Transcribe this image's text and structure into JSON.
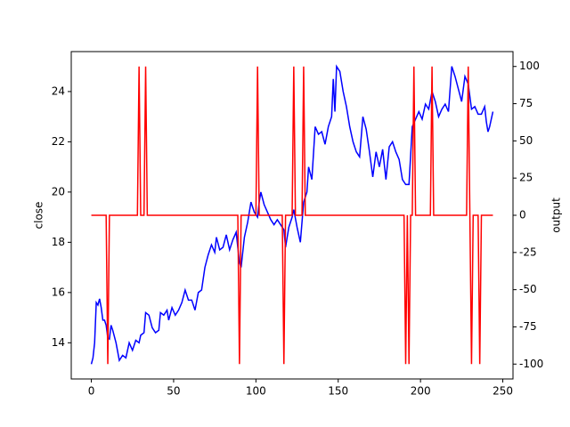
{
  "chart_data": {
    "type": "line",
    "ylabel": "close",
    "y2label": "output",
    "xlim": [
      -12.2,
      256.2
    ],
    "xticks": [
      0,
      50,
      100,
      150,
      200,
      250
    ],
    "ylim": [
      12.56,
      25.59
    ],
    "yticks": [
      14,
      16,
      18,
      20,
      22,
      24
    ],
    "y2lim": [
      -110,
      110
    ],
    "y2ticks": [
      -100,
      -75,
      -50,
      -25,
      0,
      25,
      50,
      75,
      100
    ],
    "series": [
      {
        "color": "#0000ff",
        "axis": "y",
        "x": [
          0,
          1,
          2,
          3,
          4,
          5,
          6,
          7,
          8,
          9,
          10,
          11,
          12,
          13,
          15,
          17,
          19,
          21,
          23,
          25,
          27,
          29,
          30,
          32,
          33,
          35,
          37,
          39,
          41,
          42,
          44,
          46,
          47,
          49,
          51,
          53,
          55,
          57,
          59,
          61,
          63,
          65,
          67,
          69,
          71,
          73,
          75,
          76,
          78,
          80,
          82,
          84,
          86,
          88,
          90,
          91,
          93,
          95,
          97,
          99,
          101,
          102,
          103,
          105,
          107,
          109,
          111,
          113,
          115,
          117,
          118,
          120,
          122,
          123,
          125,
          127,
          129,
          131,
          132,
          134,
          136,
          138,
          140,
          142,
          144,
          146,
          147,
          148,
          149,
          151,
          153,
          155,
          157,
          159,
          161,
          163,
          165,
          167,
          169,
          171,
          173,
          175,
          177,
          179,
          181,
          183,
          185,
          187,
          189,
          191,
          193,
          195,
          197,
          199,
          201,
          203,
          205,
          207,
          209,
          211,
          213,
          215,
          217,
          219,
          221,
          223,
          225,
          227,
          229,
          231,
          233,
          235,
          237,
          239,
          240,
          241,
          242,
          244
        ],
        "values": [
          13.15,
          13.4,
          14.0,
          15.6,
          15.5,
          15.75,
          15.4,
          14.9,
          14.9,
          14.7,
          14.2,
          14.15,
          14.7,
          14.5,
          14.0,
          13.3,
          13.5,
          13.4,
          14.0,
          13.7,
          14.1,
          14.0,
          14.3,
          14.4,
          15.2,
          15.1,
          14.6,
          14.4,
          14.5,
          15.2,
          15.1,
          15.3,
          14.9,
          15.4,
          15.1,
          15.3,
          15.6,
          16.1,
          15.7,
          15.7,
          15.3,
          16.0,
          16.1,
          17.0,
          17.5,
          17.9,
          17.6,
          18.2,
          17.7,
          17.8,
          18.3,
          17.7,
          18.1,
          18.4,
          17.2,
          17.0,
          18.2,
          18.8,
          19.6,
          19.2,
          19.0,
          19.6,
          20.0,
          19.5,
          19.2,
          18.9,
          18.7,
          18.9,
          18.7,
          18.5,
          17.8,
          18.6,
          19.0,
          19.3,
          18.6,
          18.0,
          19.6,
          20.0,
          21.0,
          20.5,
          22.6,
          22.3,
          22.4,
          21.9,
          22.6,
          23.0,
          24.5,
          23.2,
          25.0,
          24.8,
          24.0,
          23.4,
          22.6,
          22.0,
          21.6,
          21.4,
          23.0,
          22.5,
          21.6,
          20.6,
          21.6,
          21.0,
          21.7,
          20.5,
          21.8,
          22.0,
          21.6,
          21.3,
          20.5,
          20.3,
          20.3,
          22.6,
          22.9,
          23.2,
          22.9,
          23.5,
          23.3,
          24.0,
          23.6,
          23.0,
          23.3,
          23.5,
          23.2,
          25.0,
          24.6,
          24.1,
          23.6,
          24.6,
          24.3,
          23.3,
          23.4,
          23.1,
          23.1,
          23.4,
          22.8,
          22.4,
          22.6,
          23.2
        ]
      },
      {
        "color": "#ff0000",
        "axis": "y2",
        "x": [
          0,
          9,
          10,
          11,
          28,
          29,
          30,
          32,
          33,
          34,
          89,
          90,
          91,
          100,
          101,
          102,
          116,
          117,
          118,
          122,
          123,
          124,
          128,
          129,
          130,
          190,
          191,
          192,
          193,
          194,
          195,
          196,
          197,
          206,
          207,
          208,
          228,
          229,
          230,
          231,
          232,
          235,
          236,
          237,
          244
        ],
        "values": [
          0,
          0,
          -100,
          0,
          0,
          100,
          0,
          0,
          100,
          0,
          0,
          -100,
          0,
          0,
          100,
          0,
          0,
          -100,
          0,
          0,
          100,
          0,
          0,
          100,
          0,
          0,
          -100,
          0,
          -100,
          0,
          0,
          100,
          0,
          0,
          100,
          0,
          0,
          100,
          0,
          -100,
          0,
          0,
          -100,
          0,
          0
        ]
      }
    ]
  }
}
